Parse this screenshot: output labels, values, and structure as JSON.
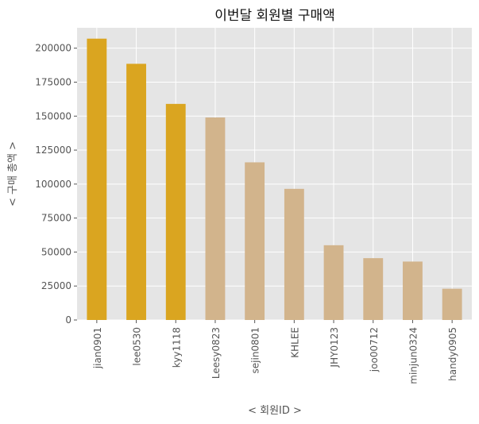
{
  "chart_data": {
    "type": "bar",
    "title": "이번달 회원별 구매액",
    "xlabel": "< 회원ID >",
    "ylabel": "< 구매 총액 >",
    "categories": [
      "jian0901",
      "lee0530",
      "kyy1118",
      "Leesy0823",
      "sejin0801",
      "KHLEE",
      "JHY0123",
      "joo00712",
      "minjun0324",
      "handy0905"
    ],
    "values": [
      207000,
      188500,
      159000,
      149000,
      116000,
      96500,
      55000,
      45500,
      43000,
      23000
    ],
    "highlight_count": 3,
    "colors": {
      "highlight": "#DAA520",
      "normal": "#D2B48C",
      "background": "#E5E5E5",
      "grid": "#FFFFFF"
    },
    "ylim": [
      0,
      215000
    ],
    "yticks": [
      0,
      25000,
      50000,
      75000,
      100000,
      125000,
      150000,
      175000,
      200000
    ],
    "grid": true
  }
}
